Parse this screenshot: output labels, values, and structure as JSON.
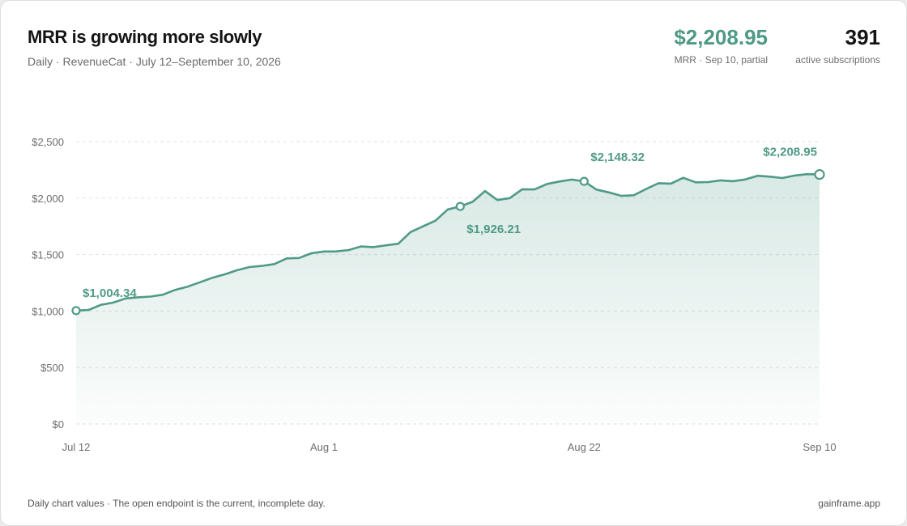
{
  "header": {
    "title": "MRR is growing more slowly",
    "subtitle": "Daily · RevenueCat · July 12–September 10, 2026"
  },
  "kpis": {
    "mrr_value": "$2,208.95",
    "mrr_label": "MRR · Sep 10, partial",
    "subs_value": "391",
    "subs_label": "active subscriptions"
  },
  "footer": {
    "note": "Daily chart values · The open endpoint is the current, incomplete day.",
    "brand": "gainframe.app"
  },
  "colors": {
    "accent": "#4f9a86",
    "grid": "#e2e2e2"
  },
  "chart_data": {
    "type": "area",
    "x_tick_labels": [
      "Jul 12",
      "Aug 1",
      "Aug 22",
      "Sep 10"
    ],
    "y_tick_labels": [
      "$0",
      "$500",
      "$1,000",
      "$1,500",
      "$2,000",
      "$2,500"
    ],
    "ylim": [
      0,
      2500
    ],
    "y_ticks": [
      0,
      500,
      1000,
      1500,
      2000,
      2500
    ],
    "grid": true,
    "series": [
      {
        "x": [
          "2026-07-12",
          "2026-07-13",
          "2026-07-14",
          "2026-07-15",
          "2026-07-16",
          "2026-07-17",
          "2026-07-18",
          "2026-07-19",
          "2026-07-20",
          "2026-07-21",
          "2026-07-22",
          "2026-07-23",
          "2026-07-24",
          "2026-07-25",
          "2026-07-26",
          "2026-07-27",
          "2026-07-28",
          "2026-07-29",
          "2026-07-30",
          "2026-07-31",
          "2026-08-01",
          "2026-08-02",
          "2026-08-03",
          "2026-08-04",
          "2026-08-05",
          "2026-08-06",
          "2026-08-07",
          "2026-08-08",
          "2026-08-09",
          "2026-08-10",
          "2026-08-11",
          "2026-08-12",
          "2026-08-13",
          "2026-08-14",
          "2026-08-15",
          "2026-08-16",
          "2026-08-17",
          "2026-08-18",
          "2026-08-19",
          "2026-08-20",
          "2026-08-21",
          "2026-08-22",
          "2026-08-23",
          "2026-08-24",
          "2026-08-25",
          "2026-08-26",
          "2026-08-27",
          "2026-08-28",
          "2026-08-29",
          "2026-08-30",
          "2026-08-31",
          "2026-09-01",
          "2026-09-02",
          "2026-09-03",
          "2026-09-04",
          "2026-09-05",
          "2026-09-06",
          "2026-09-07",
          "2026-09-08",
          "2026-09-09",
          "2026-09-10"
        ],
        "values": [
          1004.34,
          1009,
          1055,
          1075,
          1112,
          1122,
          1128,
          1145,
          1188,
          1216,
          1255,
          1295,
          1325,
          1362,
          1390,
          1400,
          1416,
          1466,
          1470,
          1512,
          1527,
          1528,
          1540,
          1572,
          1566,
          1582,
          1596,
          1700,
          1750,
          1800,
          1900,
          1926.21,
          1967,
          2062,
          1983,
          2000,
          2078,
          2077,
          2125,
          2147,
          2164,
          2148.32,
          2075,
          2050,
          2020,
          2025,
          2080,
          2132,
          2128,
          2180,
          2140,
          2142,
          2157,
          2150,
          2165,
          2198,
          2190,
          2178,
          2200,
          2212,
          2208.95
        ]
      }
    ],
    "annotations": [
      {
        "date": "2026-07-12",
        "value": 1004.34,
        "label": "$1,004.34",
        "marker": true
      },
      {
        "date": "2026-08-12",
        "value": 1926.21,
        "label": "$1,926.21",
        "marker": true
      },
      {
        "date": "2026-08-22",
        "value": 2148.32,
        "label": "$2,148.32",
        "marker": true
      },
      {
        "date": "2026-09-10",
        "value": 2208.95,
        "label": "$2,208.95",
        "marker": true,
        "open_endpoint": true
      }
    ]
  }
}
